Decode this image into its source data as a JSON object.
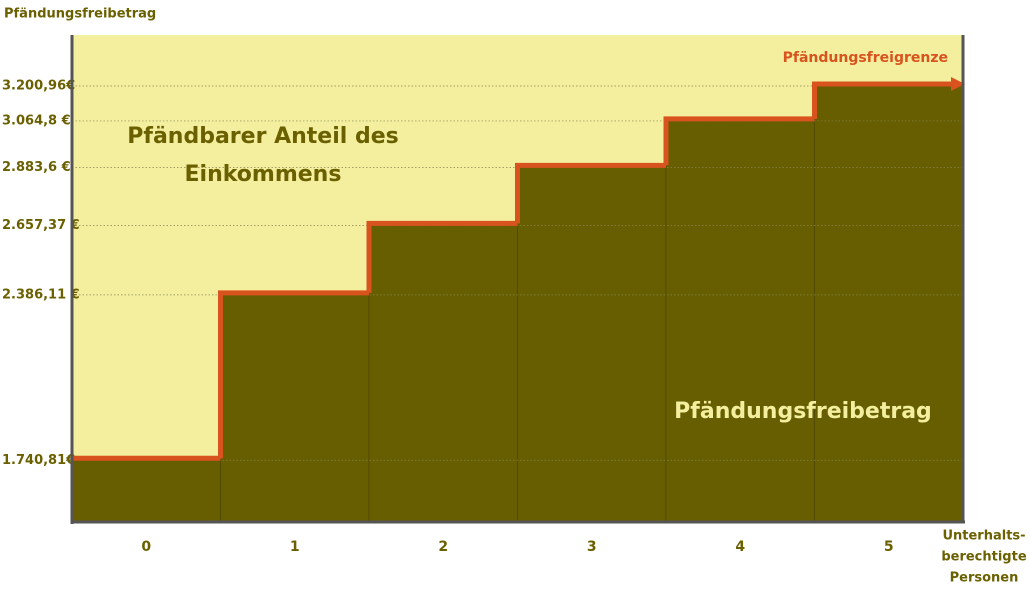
{
  "chart_data": {
    "type": "step-bar",
    "y_axis_label": "Pfändungsfreibetrag",
    "x_axis_label": [
      "Unterhalts-",
      "berechtigte",
      "Personen"
    ],
    "annotations": {
      "line_label": "Pfändungsfreigrenze",
      "upper_area": [
        "Pfändbarer Anteil des",
        "Einkommens"
      ],
      "lower_area": "Pfändungsfreibetrag"
    },
    "categories": [
      "0",
      "1",
      "2",
      "3",
      "4",
      "5"
    ],
    "values": [
      1740.81,
      2386.11,
      2657.37,
      2883.6,
      3064.8,
      3200.96
    ],
    "ylim": [
      1500,
      3400
    ],
    "yticks": [
      {
        "value": 1740.81,
        "label": "1.740,81€"
      },
      {
        "value": 2386.11,
        "label": "2.386,11 €"
      },
      {
        "value": 2657.37,
        "label": "2.657,37 €"
      },
      {
        "value": 2883.6,
        "label": "2.883,6 €"
      },
      {
        "value": 3064.8,
        "label": "3.064,8 €"
      },
      {
        "value": 3200.96,
        "label": "3.200,96€"
      }
    ],
    "grid": true,
    "colors": {
      "bar": "#665e00",
      "line": "#d9531e",
      "background": "#f3ef9f",
      "text": "#6b6000"
    }
  }
}
